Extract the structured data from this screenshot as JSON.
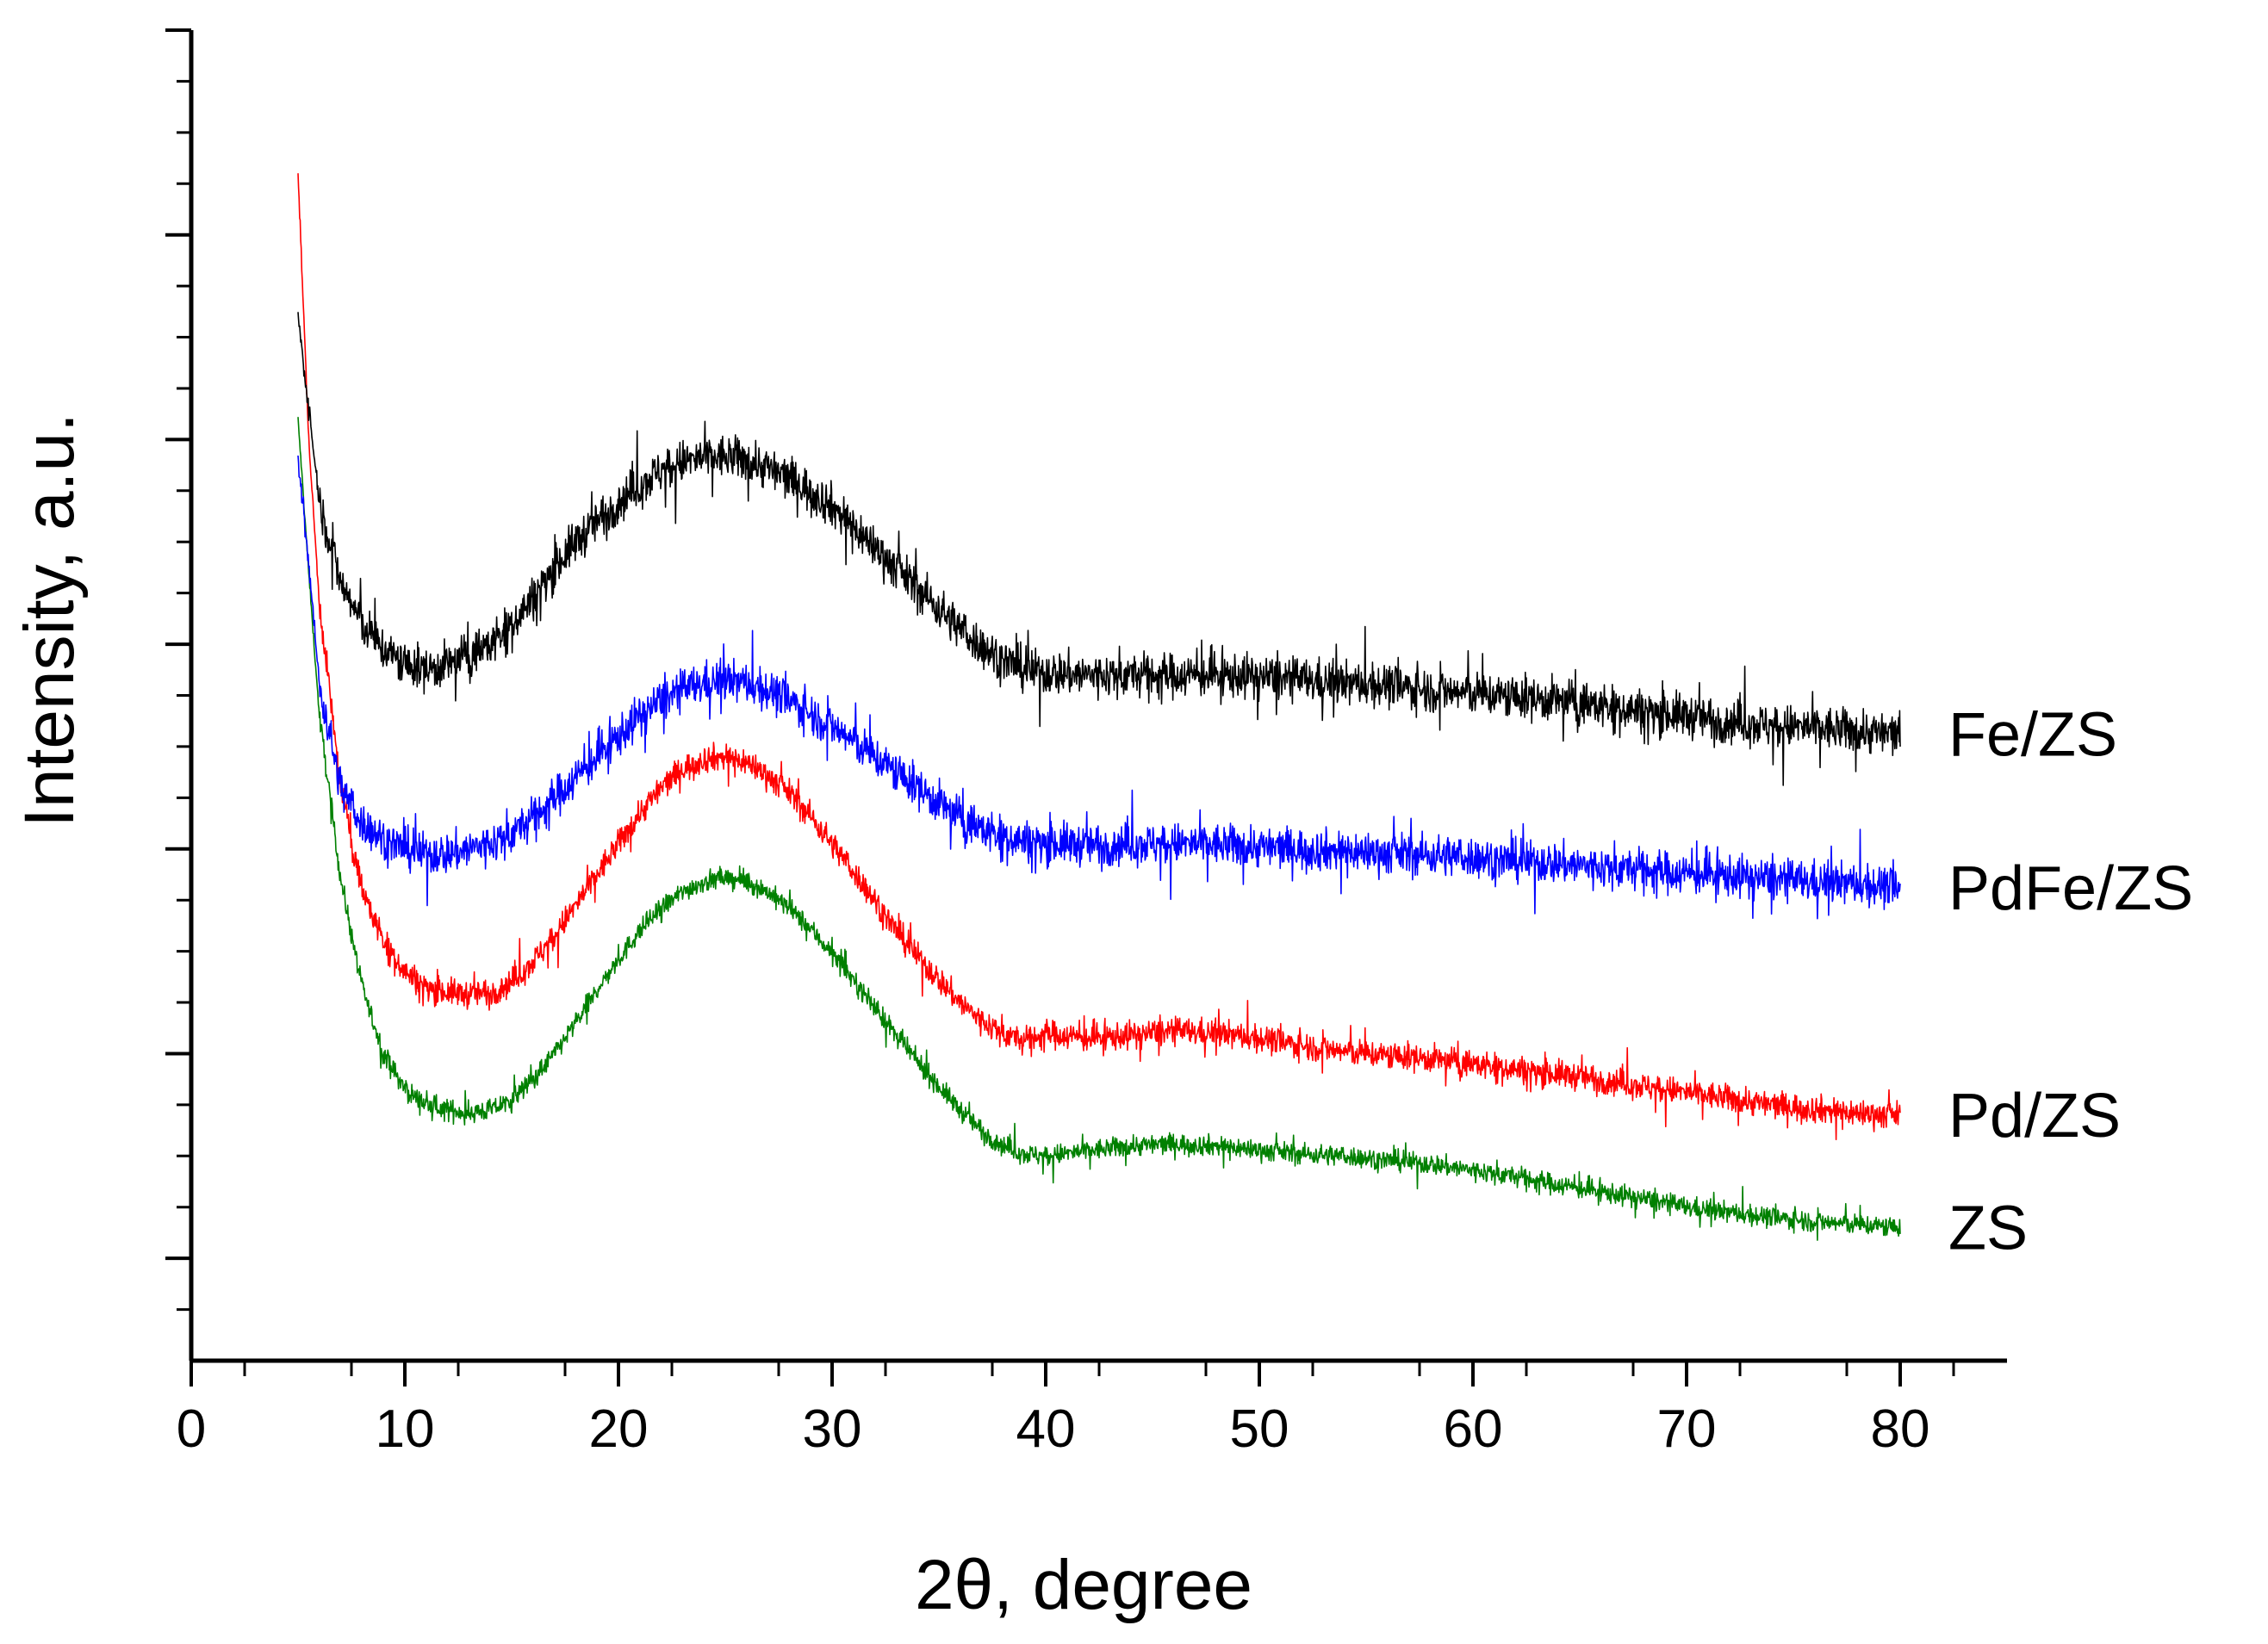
{
  "chart_data": {
    "type": "line",
    "title": "",
    "xlabel": "2θ, degree",
    "ylabel": "Intensity, a.u.",
    "xlim": [
      0,
      85
    ],
    "ylim": [
      0,
      13
    ],
    "xticks": [
      0,
      10,
      20,
      30,
      40,
      50,
      60,
      70,
      80
    ],
    "xtick_labels": [
      "0",
      "10",
      "20",
      "30",
      "40",
      "50",
      "60",
      "70",
      "80"
    ],
    "yticks_major": [
      1,
      3,
      5,
      7,
      9,
      11,
      13
    ],
    "grid": false,
    "legend": "inline labels at right end of each curve",
    "series": [
      {
        "name": "Fe/ZS",
        "color": "#000000",
        "noise": 0.38,
        "x": [
          5,
          5.5,
          6,
          7,
          8,
          9,
          10,
          11,
          12,
          13,
          14,
          15,
          16,
          17,
          18,
          19,
          20,
          21,
          22,
          23,
          24,
          25,
          26,
          27,
          28,
          29,
          30,
          31,
          32,
          33,
          34,
          35,
          36,
          37,
          38,
          39,
          40,
          42,
          44,
          46,
          48,
          50,
          52,
          54,
          56,
          58,
          60,
          62,
          64,
          66,
          68,
          70,
          72,
          74,
          76,
          78,
          80
        ],
        "y": [
          10.2,
          9.3,
          8.4,
          7.6,
          7.2,
          6.95,
          6.8,
          6.75,
          6.8,
          6.9,
          7.0,
          7.2,
          7.45,
          7.75,
          8.0,
          8.2,
          8.4,
          8.55,
          8.7,
          8.78,
          8.82,
          8.83,
          8.8,
          8.72,
          8.62,
          8.5,
          8.35,
          8.15,
          7.95,
          7.75,
          7.55,
          7.35,
          7.15,
          6.98,
          6.85,
          6.75,
          6.72,
          6.7,
          6.7,
          6.7,
          6.7,
          6.68,
          6.65,
          6.62,
          6.6,
          6.55,
          6.52,
          6.48,
          6.45,
          6.4,
          6.35,
          6.3,
          6.25,
          6.2,
          6.18,
          6.15,
          6.12
        ]
      },
      {
        "name": "PdFe/ZS",
        "color": "#0000ff",
        "noise": 0.36,
        "x": [
          5,
          5.5,
          6,
          7,
          8,
          9,
          10,
          11,
          12,
          13,
          14,
          15,
          16,
          17,
          18,
          19,
          20,
          21,
          22,
          23,
          24,
          25,
          26,
          27,
          28,
          29,
          30,
          31,
          32,
          33,
          34,
          35,
          36,
          37,
          38,
          39,
          40,
          42,
          44,
          46,
          48,
          50,
          52,
          54,
          56,
          58,
          60,
          62,
          64,
          66,
          68,
          70,
          72,
          74,
          76,
          78,
          80
        ],
        "y": [
          8.8,
          7.8,
          6.6,
          5.6,
          5.25,
          5.1,
          5.0,
          4.95,
          4.95,
          5.0,
          5.05,
          5.15,
          5.3,
          5.5,
          5.7,
          5.9,
          6.1,
          6.3,
          6.45,
          6.55,
          6.62,
          6.65,
          6.62,
          6.55,
          6.45,
          6.32,
          6.2,
          6.05,
          5.9,
          5.75,
          5.6,
          5.45,
          5.3,
          5.2,
          5.12,
          5.08,
          5.06,
          5.04,
          5.05,
          5.05,
          5.04,
          5.02,
          5.0,
          4.98,
          4.96,
          4.94,
          4.92,
          4.88,
          4.86,
          4.82,
          4.8,
          4.76,
          4.74,
          4.7,
          4.68,
          4.66,
          4.62
        ]
      },
      {
        "name": "Pd/ZS",
        "color": "#ff0000",
        "noise": 0.24,
        "x": [
          5,
          5.5,
          6,
          7,
          8,
          9,
          10,
          11,
          12,
          13,
          14,
          15,
          16,
          17,
          18,
          19,
          20,
          21,
          22,
          23,
          24,
          25,
          26,
          27,
          28,
          29,
          30,
          31,
          32,
          33,
          34,
          35,
          36,
          37,
          38,
          39,
          40,
          42,
          44,
          46,
          48,
          50,
          52,
          54,
          56,
          58,
          60,
          62,
          64,
          66,
          68,
          70,
          72,
          74,
          76,
          78,
          80
        ],
        "y": [
          11.6,
          9.0,
          7.4,
          5.6,
          4.6,
          4.1,
          3.8,
          3.65,
          3.6,
          3.58,
          3.6,
          3.7,
          3.9,
          4.15,
          4.45,
          4.75,
          5.05,
          5.35,
          5.6,
          5.78,
          5.88,
          5.9,
          5.85,
          5.72,
          5.55,
          5.32,
          5.05,
          4.78,
          4.5,
          4.2,
          3.95,
          3.72,
          3.5,
          3.32,
          3.2,
          3.12,
          3.2,
          3.15,
          3.18,
          3.22,
          3.2,
          3.15,
          3.08,
          3.02,
          2.98,
          2.95,
          2.9,
          2.85,
          2.8,
          2.75,
          2.68,
          2.62,
          2.56,
          2.5,
          2.46,
          2.42,
          2.4
        ]
      },
      {
        "name": "ZS",
        "color": "#008000",
        "noise": 0.18,
        "x": [
          5,
          5.5,
          6,
          7,
          8,
          9,
          10,
          11,
          12,
          13,
          14,
          15,
          16,
          17,
          18,
          19,
          20,
          21,
          22,
          23,
          24,
          25,
          26,
          27,
          28,
          29,
          30,
          31,
          32,
          33,
          34,
          35,
          36,
          37,
          38,
          39,
          40,
          42,
          44,
          46,
          48,
          50,
          52,
          54,
          56,
          58,
          60,
          62,
          64,
          66,
          68,
          70,
          72,
          74,
          76,
          78,
          80
        ],
        "y": [
          9.2,
          7.7,
          6.3,
          4.7,
          3.65,
          3.0,
          2.65,
          2.5,
          2.45,
          2.42,
          2.45,
          2.55,
          2.75,
          3.0,
          3.3,
          3.62,
          3.92,
          4.2,
          4.42,
          4.58,
          4.68,
          4.72,
          4.68,
          4.58,
          4.42,
          4.22,
          3.98,
          3.72,
          3.45,
          3.18,
          2.92,
          2.68,
          2.45,
          2.25,
          2.1,
          2.02,
          2.0,
          2.05,
          2.1,
          2.12,
          2.1,
          2.06,
          2.02,
          2.0,
          1.96,
          1.92,
          1.86,
          1.8,
          1.72,
          1.65,
          1.58,
          1.5,
          1.45,
          1.4,
          1.36,
          1.33,
          1.3
        ]
      }
    ]
  }
}
